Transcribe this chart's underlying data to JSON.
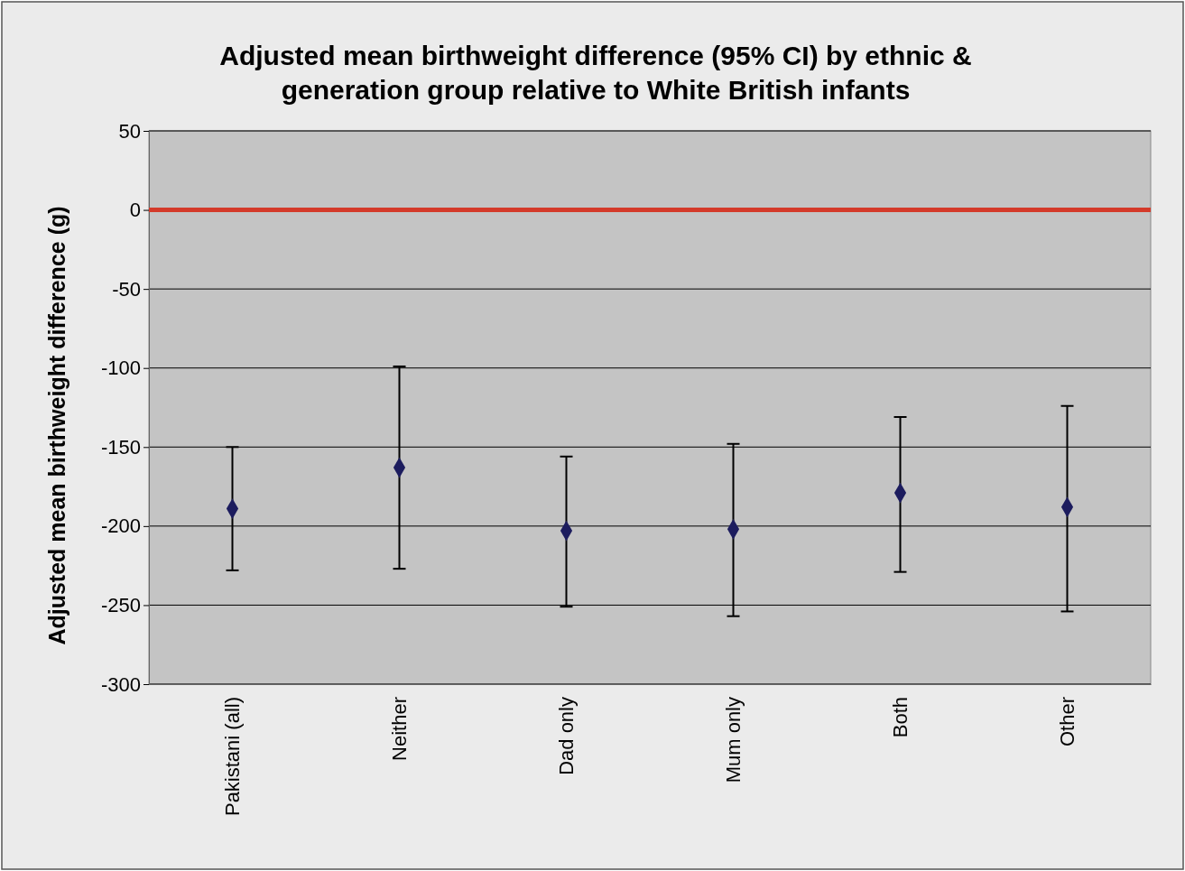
{
  "chart_data": {
    "type": "scatter",
    "title": "Adjusted mean birthweight difference (95% CI) by ethnic & generation group relative to White British infants",
    "ylabel": "Adjusted mean birthweight difference (g)",
    "categories": [
      "Pakistani (all)",
      "Neither",
      "Dad only",
      "Mum only",
      "Both",
      "Other"
    ],
    "series": [
      {
        "color": "#1c1c5e",
        "values": [
          -189,
          -163,
          -203,
          -202,
          -179,
          -188
        ],
        "errors": [
          [
            -228,
            -150
          ],
          [
            -227,
            -99
          ],
          [
            -251,
            -156
          ],
          [
            -257,
            -148
          ],
          [
            -229,
            -131
          ],
          [
            -254,
            -124
          ]
        ]
      }
    ],
    "ylim": [
      -300,
      50
    ],
    "yticks": [
      -300,
      -250,
      -200,
      -150,
      -100,
      -50,
      0,
      50
    ],
    "grid": "y",
    "marker": "diamond",
    "ref_lines": [
      {
        "axis": "y",
        "value": 0,
        "color": "#d43a2a"
      }
    ]
  }
}
